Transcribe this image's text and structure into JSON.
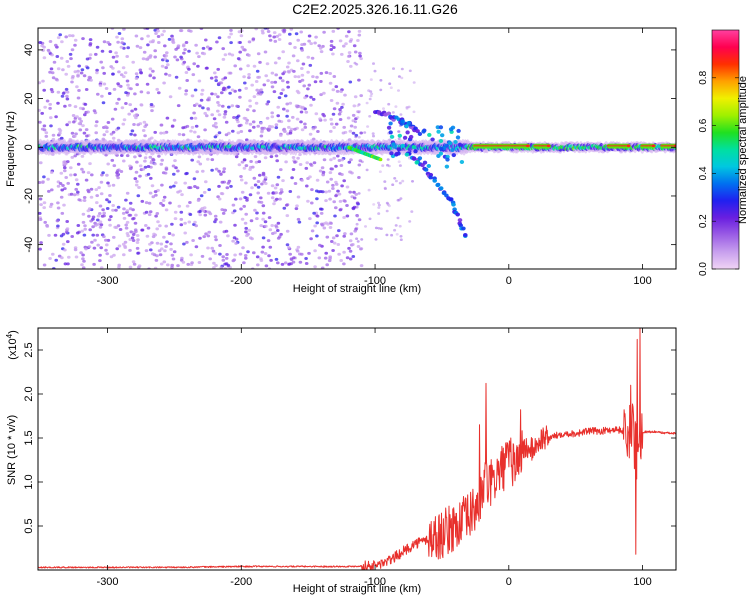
{
  "figure": {
    "title": "C2E2.2025.326.16.11.G26"
  },
  "chart_data": [
    {
      "type": "heatmap",
      "xlabel": "Height of straight line (km)",
      "ylabel": "Frequency (Hz)",
      "xlim": [
        -352,
        125
      ],
      "ylim": [
        -50,
        49
      ],
      "xticks": [
        "-300",
        "-200",
        "-100",
        "0",
        "100"
      ],
      "yticks": [
        "-40",
        "-20",
        "0",
        "20",
        "40"
      ],
      "colorbar": {
        "label": "Normalized spectral amplitude",
        "range": [
          0,
          1
        ],
        "ticks": [
          "0.0",
          "0.2",
          "0.4",
          "0.6",
          "0.8"
        ],
        "colormap": [
          "#f0d4f5",
          "#c8a0ee",
          "#9b5de5",
          "#6a1fe0",
          "#2020f0",
          "#0070f0",
          "#00c8e0",
          "#00e0a0",
          "#20e020",
          "#a0f000",
          "#f0f000",
          "#ffa000",
          "#ff3000",
          "#ff0050",
          "#ff40a0"
        ]
      },
      "features": {
        "main_band": {
          "x_range": [
            -352,
            125
          ],
          "freq_hz": 0,
          "note": "persistent band near 0 Hz; strongest (red) from about -30 to 125 km"
        },
        "upper_branch": {
          "x": [
            -100,
            -90,
            -82,
            -75,
            -68
          ],
          "freq_hz": [
            15,
            13,
            11,
            9,
            7
          ]
        },
        "lower_branch": {
          "x": [
            -75,
            -65,
            -55,
            -45,
            -38,
            -32
          ],
          "freq_hz": [
            -3,
            -8,
            -14,
            -20,
            -28,
            -38
          ]
        },
        "scatter_region": {
          "x_range": [
            -352,
            -110
          ],
          "freq_range_hz": [
            -50,
            49
          ]
        },
        "red_segments_km": [
          [
            -25,
            15
          ],
          [
            20,
            30
          ],
          [
            75,
            90
          ],
          [
            100,
            108
          ],
          [
            115,
            125
          ]
        ]
      }
    },
    {
      "type": "line",
      "xlabel": "Height of straight line (km)",
      "ylabel": "SNR (10 * v/v)",
      "y_multiplier": "(x10",
      "y_multiplier_exp": "4",
      "y_multiplier_close": ")",
      "xlim": [
        -352,
        125
      ],
      "ylim": [
        0,
        2.75
      ],
      "xticks": [
        "-300",
        "-200",
        "-100",
        "0",
        "100"
      ],
      "yticks": [
        "0.5",
        "1.0",
        "1.5",
        "2.0",
        "2.5"
      ],
      "line_color": "#e8302c",
      "series": [
        {
          "x": [
            -352,
            -300,
            -250,
            -200,
            -150,
            -120,
            -100,
            -90,
            -80,
            -70,
            -60,
            -50,
            -40,
            -30,
            -25,
            -20,
            -18,
            -15,
            -12,
            -10,
            -5,
            0,
            5,
            10,
            12,
            15,
            20,
            25,
            30,
            40,
            50,
            60,
            70,
            80,
            85,
            90,
            92,
            94,
            95,
            96,
            97,
            100,
            105,
            110,
            115,
            125
          ],
          "y": [
            0.03,
            0.03,
            0.03,
            0.04,
            0.04,
            0.04,
            0.05,
            0.1,
            0.2,
            0.3,
            0.35,
            0.4,
            0.5,
            0.6,
            0.7,
            0.85,
            1.05,
            0.95,
            1.0,
            1.05,
            1.15,
            1.25,
            1.2,
            1.35,
            1.4,
            1.35,
            1.4,
            1.5,
            1.5,
            1.55,
            1.55,
            1.58,
            1.58,
            1.6,
            1.58,
            1.55,
            1.7,
            1.4,
            1.6,
            1.0,
            1.55,
            1.57,
            1.57,
            1.57,
            1.56,
            1.55
          ]
        }
      ],
      "spikes": [
        {
          "x": -17,
          "y": 2.12
        },
        {
          "x": -22,
          "y": 1.65
        },
        {
          "x": 9,
          "y": 1.82
        },
        {
          "x": 96,
          "y": 2.62
        },
        {
          "x": 98,
          "y": 2.75
        },
        {
          "x": 95,
          "y": 0.18
        },
        {
          "x": 91,
          "y": 2.1
        }
      ]
    }
  ]
}
